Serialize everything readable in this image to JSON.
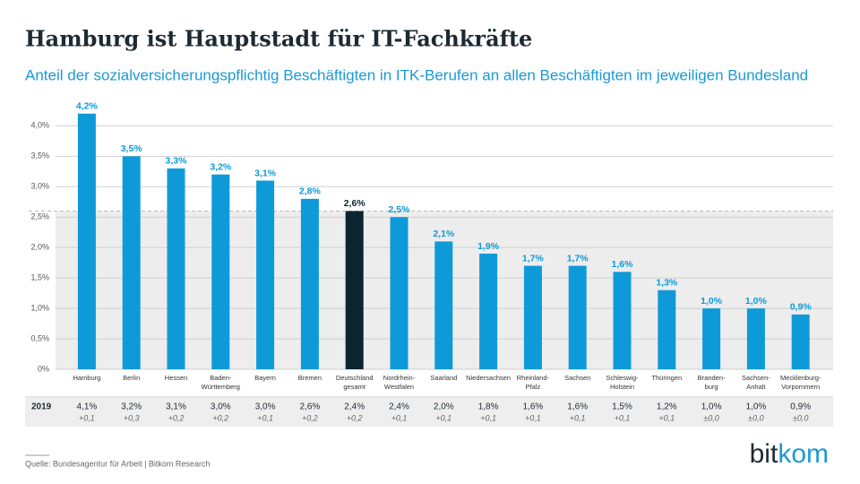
{
  "chart_data": {
    "type": "bar",
    "title": "Hamburg ist Hauptstadt für IT-Fachkräfte",
    "subtitle": "Anteil der sozialversicherungspflichtig Beschäftigten in ITK-Berufen an allen Beschäftigten im jeweiligen Bundesland",
    "categories": [
      [
        "Hamburg"
      ],
      [
        "Berlin"
      ],
      [
        "Hessen"
      ],
      [
        "Baden-",
        "Württemberg"
      ],
      [
        "Bayern"
      ],
      [
        "Bremen"
      ],
      [
        "Deutschland",
        "gesamt"
      ],
      [
        "Nordrhein-",
        "Westfalen"
      ],
      [
        "Saarland"
      ],
      [
        "Niedersachsen"
      ],
      [
        "Rheinland-",
        "Pfalz"
      ],
      [
        "Sachsen"
      ],
      [
        "Schleswig-",
        "Holstein"
      ],
      [
        "Thüringen"
      ],
      [
        "Branden-",
        "burg"
      ],
      [
        "Sachsen-",
        "Anhalt"
      ],
      [
        "Mecklenburg-",
        "Vorpommern"
      ]
    ],
    "values": [
      4.2,
      3.5,
      3.3,
      3.2,
      3.1,
      2.8,
      2.6,
      2.5,
      2.1,
      1.9,
      1.7,
      1.7,
      1.6,
      1.3,
      1.0,
      1.0,
      0.9
    ],
    "value_labels": [
      "4,2%",
      "3,5%",
      "3,3%",
      "3,2%",
      "3,1%",
      "2,8%",
      "2,6%",
      "2,5%",
      "2,1%",
      "1,9%",
      "1,7%",
      "1,7%",
      "1,6%",
      "1,3%",
      "1,0%",
      "1,0%",
      "0,9%"
    ],
    "color": "#0e9ad8",
    "highlight_index": 6,
    "highlight_color": "#0b2430",
    "ylim": [
      0,
      4.3
    ],
    "yticks": [
      {
        "value": 0,
        "label": "0%"
      },
      {
        "value": 0.5,
        "label": "0,5%"
      },
      {
        "value": 1.0,
        "label": "1,0%"
      },
      {
        "value": 1.5,
        "label": "1,5%"
      },
      {
        "value": 2.0,
        "label": "2,0%"
      },
      {
        "value": 2.5,
        "label": "2,5%"
      },
      {
        "value": 3.0,
        "label": "3,0%"
      },
      {
        "value": 3.5,
        "label": "3,5%"
      },
      {
        "value": 4.0,
        "label": "4,0%"
      }
    ],
    "grid": true,
    "table": {
      "row_label": "2019",
      "values": [
        "4,1%",
        "3,2%",
        "3,1%",
        "3,0%",
        "3,0%",
        "2,6%",
        "2,4%",
        "2,4%",
        "2,0%",
        "1,8%",
        "1,6%",
        "1,6%",
        "1,5%",
        "1,2%",
        "1,0%",
        "1,0%",
        "0,9%"
      ],
      "changes": [
        "+0,1",
        "+0,3",
        "+0,2",
        "+0,2",
        "+0,1",
        "+0,2",
        "+0,2",
        "+0,1",
        "+0,1",
        "+0,1",
        "+0,1",
        "+0,1",
        "+0,1",
        "+0,1",
        "±0,0",
        "±0,0",
        "±0,0"
      ]
    },
    "source": "Quelle: Bundesagentur für Arbeit | Bitkom Research",
    "logo": [
      "bit",
      "kom"
    ]
  }
}
